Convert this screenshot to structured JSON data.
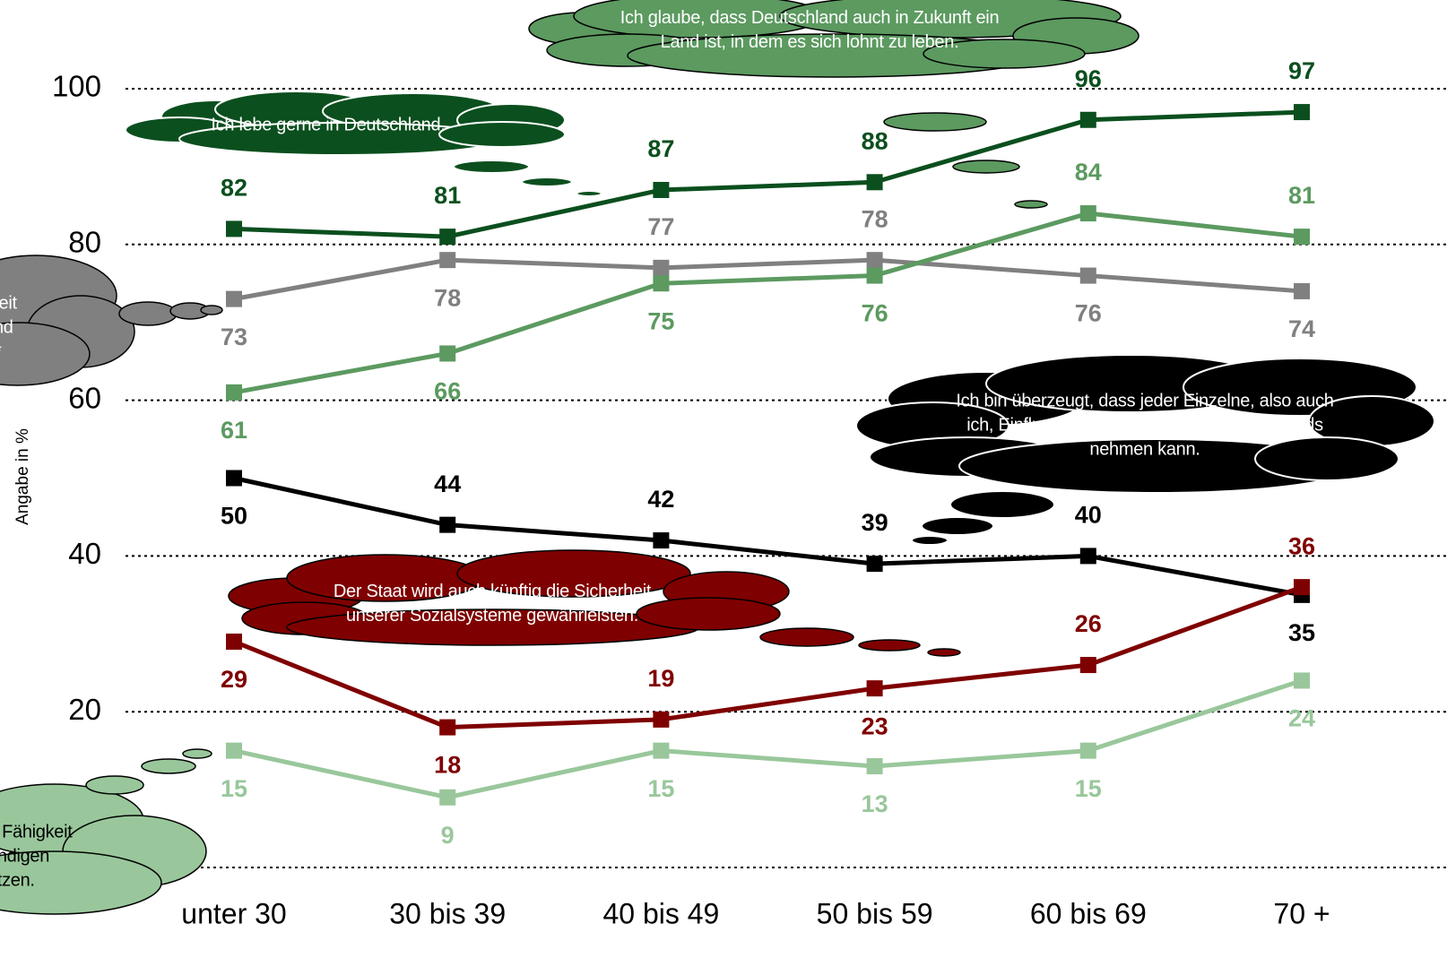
{
  "chart_data": {
    "type": "line",
    "y_label": "Angabe in %",
    "categories": [
      "unter 30",
      "30 bis 39",
      "40 bis 49",
      "50 bis 59",
      "60 bis 69",
      "70 +"
    ],
    "ylim": [
      0,
      100
    ],
    "yticks": [
      20,
      40,
      60,
      80,
      100
    ],
    "grid": true,
    "series": [
      {
        "name": "Ich lebe gerne in Deutschland.",
        "color": "#0b4f1e",
        "values": [
          82,
          81,
          87,
          88,
          96,
          97
        ]
      },
      {
        "name": "hkeit\nland\nn.*",
        "color": "#808080",
        "values": [
          73,
          78,
          77,
          78,
          76,
          74
        ]
      },
      {
        "name": "Ich glaube, dass Deutschland auch in Zukunft ein Land ist, in dem es sich lohnt zu leben.",
        "color": "#5c9a60",
        "values": [
          61,
          66,
          75,
          76,
          84,
          81
        ]
      },
      {
        "name": "Ich bin überzeugt, dass jeder Einzelne, also auch ich, Einfluss auf die Entwicklung Deutschlands nehmen kann.",
        "color": "#000000",
        "values": [
          50,
          44,
          42,
          39,
          40,
          35
        ]
      },
      {
        "name": "Der Staat wird auch künftig die Sicherheit unserer Sozialsysteme gewährleisten.",
        "color": "#7f0000",
        "values": [
          29,
          18,
          19,
          23,
          26,
          36
        ]
      },
      {
        "name": "e Fähigkeit\nendigen\netzen.",
        "color": "#99c79b",
        "values": [
          15,
          9,
          15,
          13,
          15,
          24
        ]
      }
    ]
  }
}
